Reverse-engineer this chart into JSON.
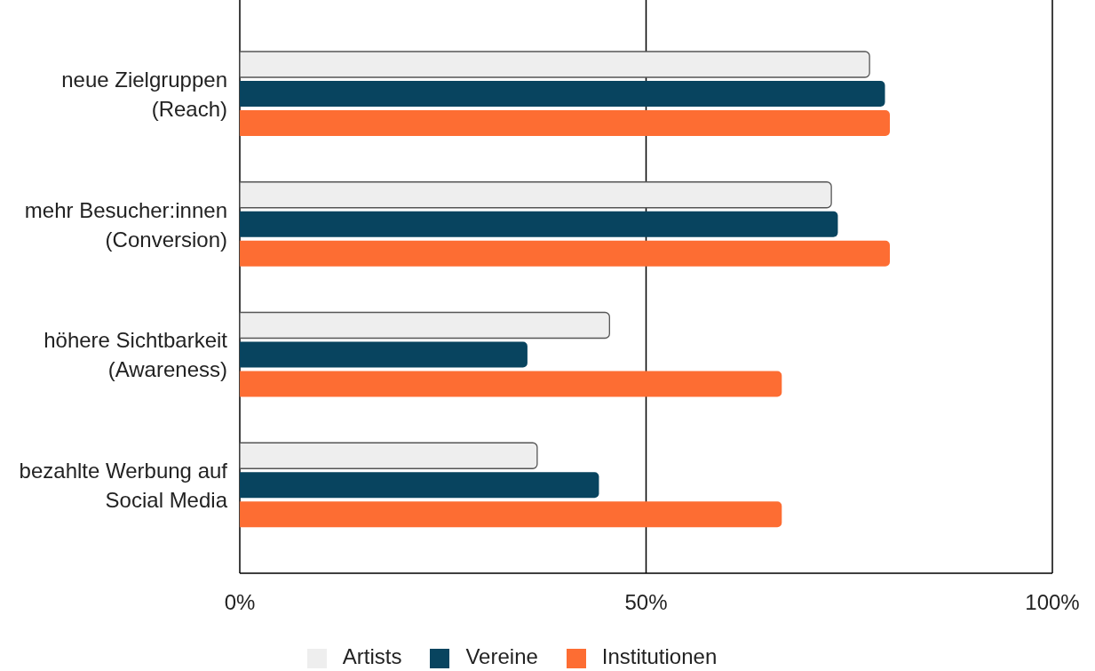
{
  "chart_data": {
    "type": "bar",
    "orientation": "horizontal",
    "categories": [
      "neue Zielgruppen (Reach)",
      "mehr Besucher:innen (Conversion)",
      "höhere Sichtbarkeit (Awareness)",
      "bezahlte Werbung auf Social Media"
    ],
    "series": [
      {
        "name": "Artists",
        "color": "#eeeeee",
        "values": [
          77.5,
          72.8,
          45.5,
          36.6
        ]
      },
      {
        "name": "Vereine",
        "color": "#08445f",
        "values": [
          79.4,
          73.6,
          35.4,
          44.2
        ]
      },
      {
        "name": "Institutionen",
        "color": "#fd6d33",
        "values": [
          80,
          80,
          66.7,
          66.7
        ]
      }
    ],
    "xlim": [
      0,
      100
    ],
    "xticks": [
      {
        "value": 0,
        "label": "0%"
      },
      {
        "value": 50,
        "label": "50%"
      },
      {
        "value": 100,
        "label": "100%"
      }
    ],
    "grid": "x",
    "legend": "bottom"
  }
}
